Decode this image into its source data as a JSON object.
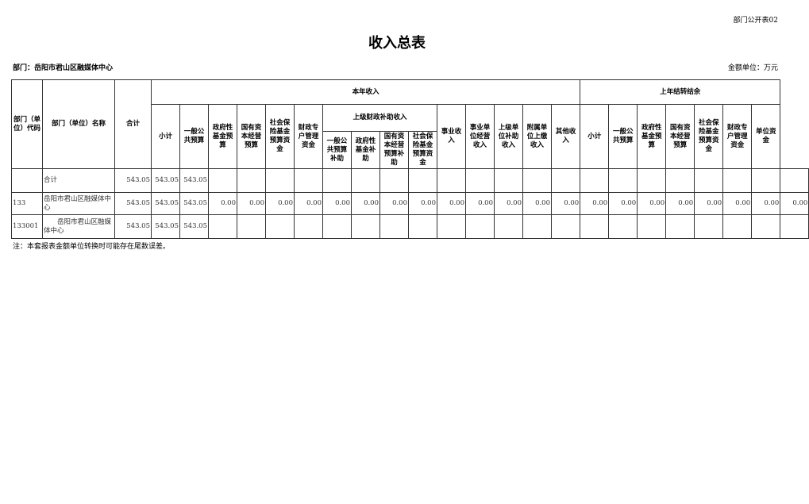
{
  "form_no": "部门公开表02",
  "title": "收入总表",
  "dept_label": "部门：岳阳市君山区融媒体中心",
  "unit_label": "金额单位：万元",
  "headers": {
    "code": "部门（单位）代码",
    "name": "部门（单位）名称",
    "total": "合计",
    "this_year": "本年收入",
    "last_year": "上年结转结余",
    "superior_group": "上级财政补助收入",
    "this_year_cols": [
      "小计",
      "一般公共预算",
      "政府性基金预算",
      "国有资本经营预算",
      "社会保险基金预算资金",
      "财政专户管理资金"
    ],
    "superior_cols": [
      "一般公共预算补助",
      "政府性基金补助",
      "国有资本经营预算补助",
      "社会保险基金预算资金"
    ],
    "other_cols": [
      "事业收入",
      "事业单位经营收入",
      "上级单位补助收入",
      "附属单位上缴收入",
      "其他收入"
    ],
    "last_year_cols": [
      "小计",
      "一般公共预算",
      "政府性基金预算",
      "国有资本经营预算",
      "社会保险基金预算资金",
      "财政专户管理资金",
      "单位资金"
    ]
  },
  "rows": [
    {
      "code": "",
      "name": "合计",
      "values": [
        "543.05",
        "543.05",
        "543.05",
        "",
        "",
        "",
        "",
        "",
        "",
        "",
        "",
        "",
        "",
        "",
        "",
        "",
        "",
        "",
        "",
        "",
        "",
        "",
        "",
        ""
      ]
    },
    {
      "code": "133",
      "name": "岳阳市君山区融媒体中心",
      "values": [
        "543.05",
        "543.05",
        "543.05",
        "0.00",
        "0.00",
        "0.00",
        "0.00",
        "0.00",
        "0.00",
        "0.00",
        "0.00",
        "0.00",
        "0.00",
        "0.00",
        "0.00",
        "0.00",
        "0.00",
        "0.00",
        "0.00",
        "0.00",
        "0.00",
        "0.00",
        "0.00",
        "0.00"
      ]
    },
    {
      "code": "133001",
      "name": "　　岳阳市君山区融媒体中心",
      "values": [
        "543.05",
        "543.05",
        "543.05",
        "",
        "",
        "",
        "",
        "",
        "",
        "",
        "",
        "",
        "",
        "",
        "",
        "",
        "",
        "",
        "",
        "",
        "",
        "",
        "",
        ""
      ]
    }
  ],
  "note": "注：本套报表金额单位转换时可能存在尾数误差。"
}
